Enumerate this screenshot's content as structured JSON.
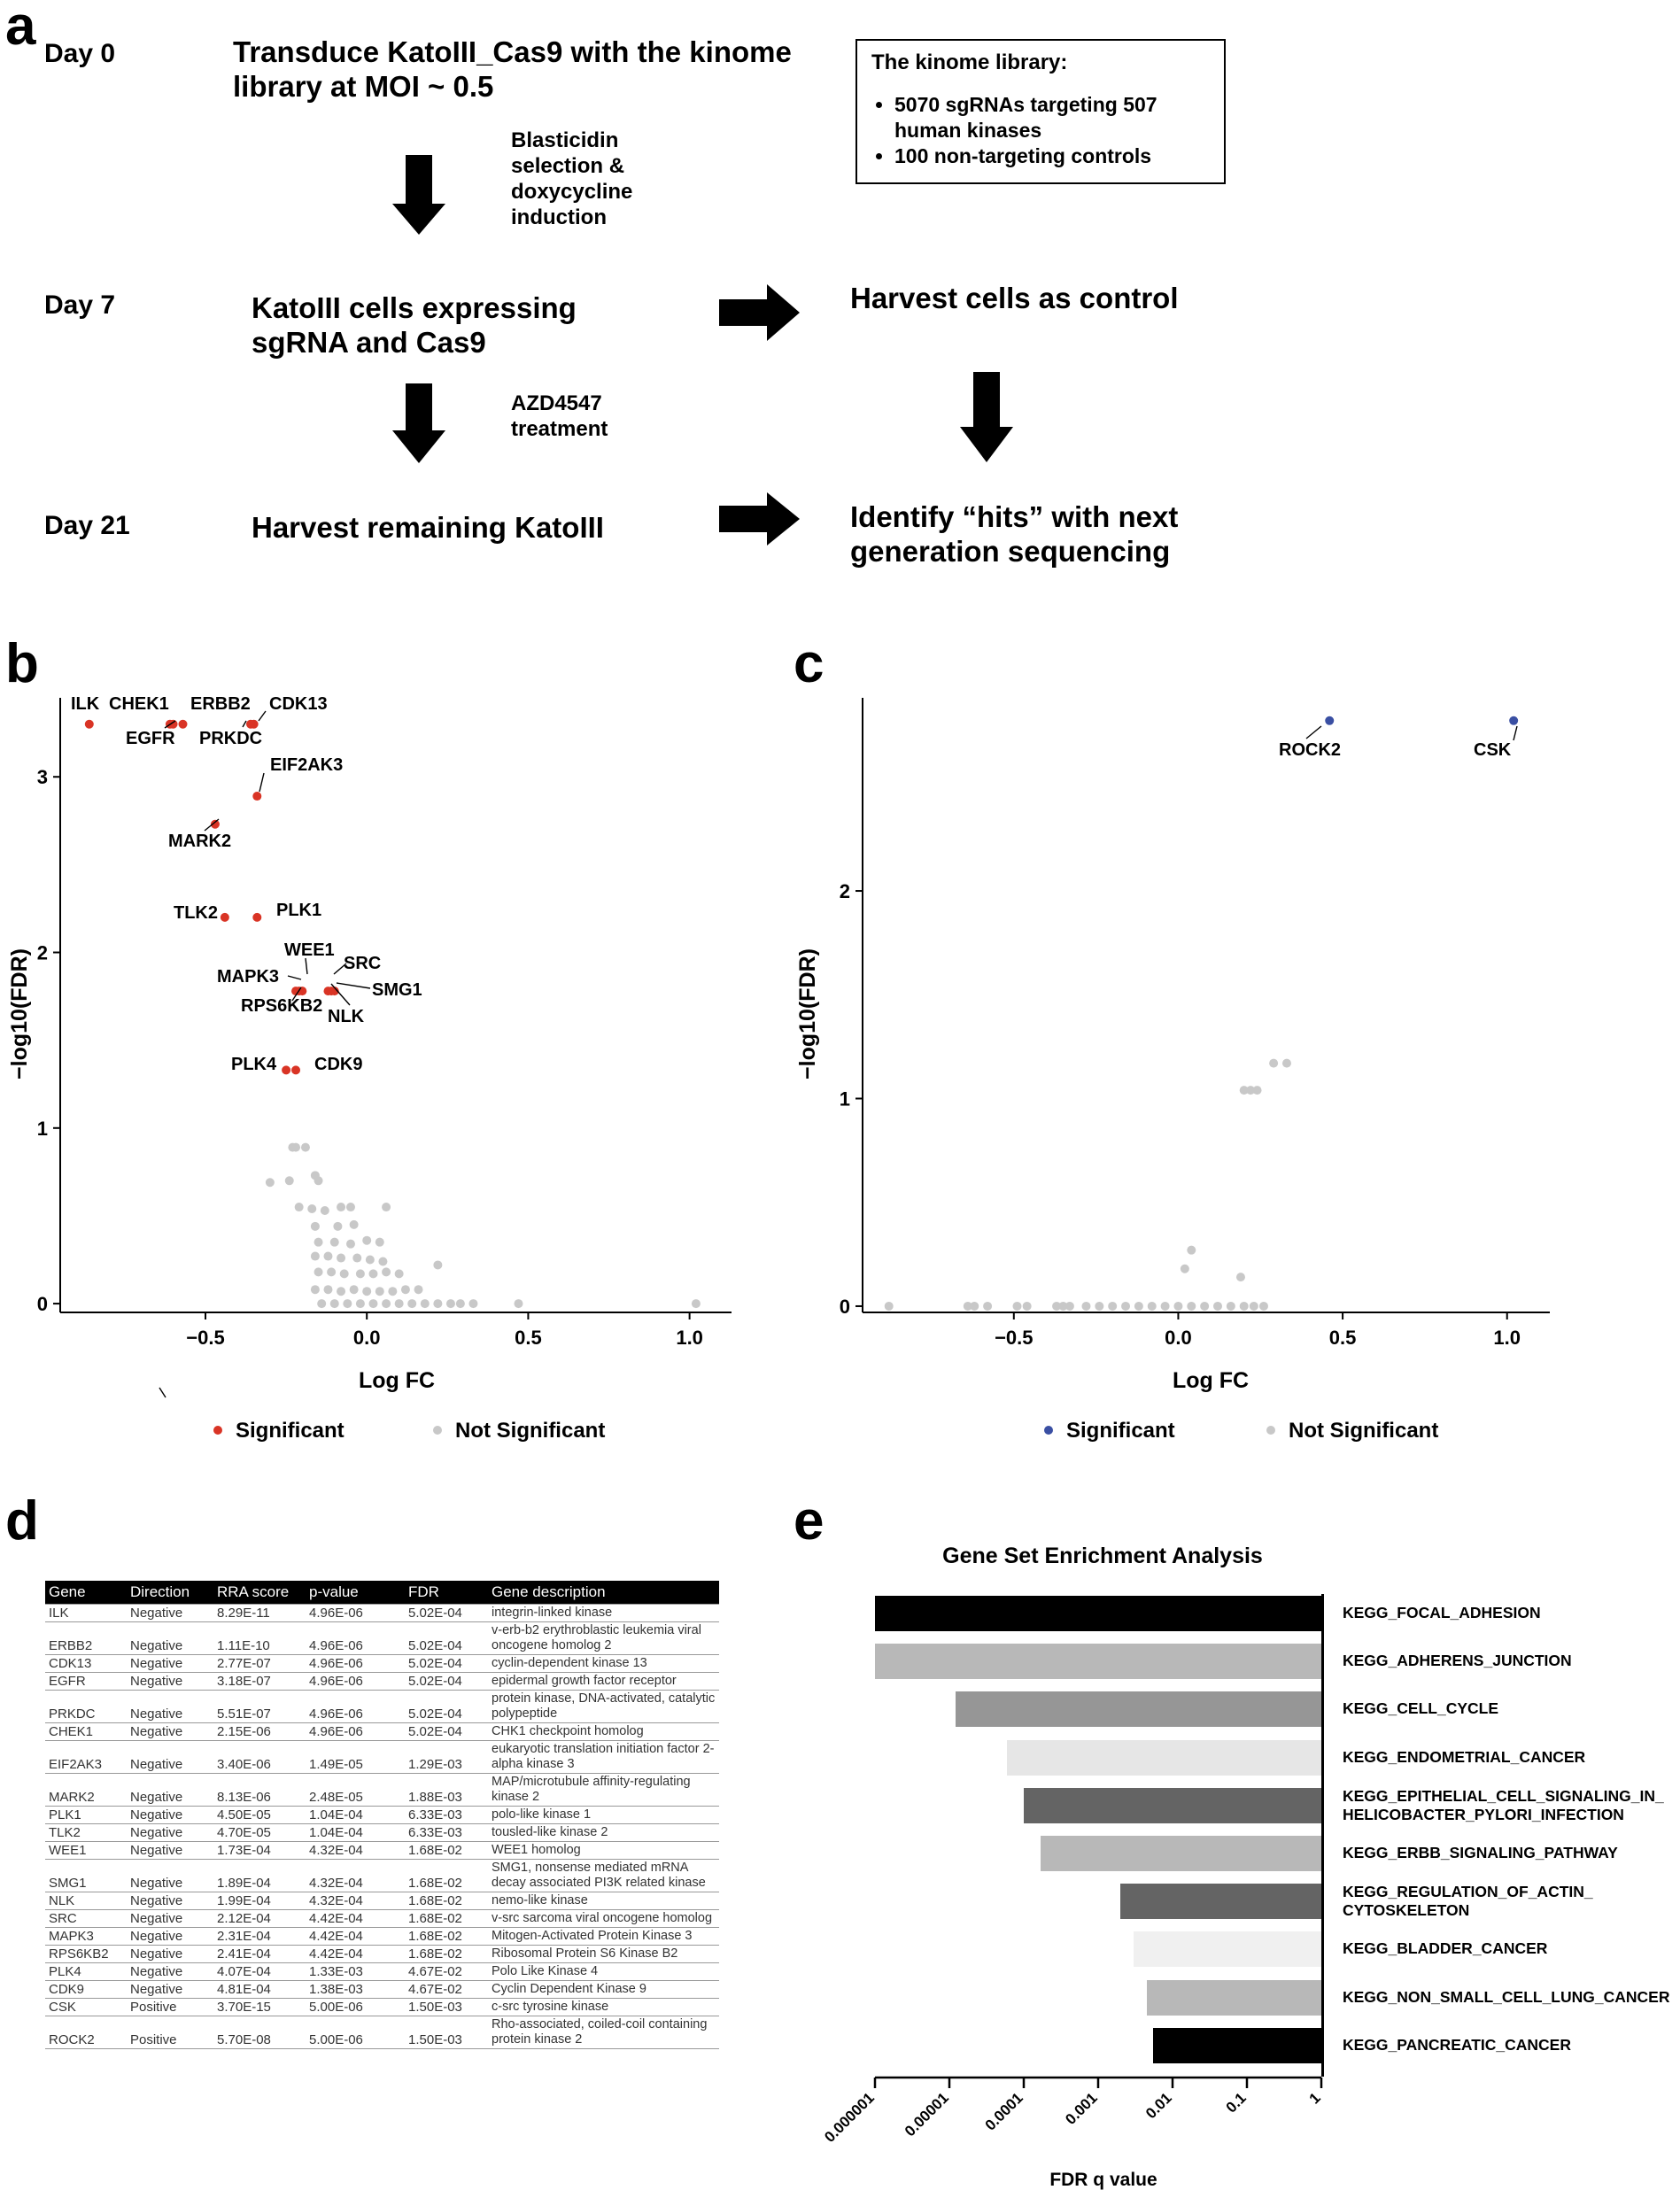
{
  "panel_a": {
    "letter": "a",
    "steps": [
      {
        "day": "Day 0",
        "text_lines": [
          "Transduce KatoIII_Cas9 with the kinome",
          "library at MOI ~ 0.5"
        ]
      },
      {
        "day": "Day 7",
        "text_lines": [
          "KatoIII cells expressing",
          "sgRNA and Cas9"
        ]
      },
      {
        "day": "Day 21",
        "text_lines": [
          "Harvest remaining KatoIII"
        ]
      }
    ],
    "notes": [
      [
        "Blasticidin",
        "selection &",
        "doxycycline",
        "induction"
      ],
      [
        "AZD4547",
        "treatment"
      ]
    ],
    "control_text": "Harvest cells as control",
    "identify_lines": [
      "Identify “hits” with next",
      "generation sequencing"
    ],
    "library_box": {
      "title": "The kinome library:",
      "items": [
        "5070 sgRNAs targeting 507 human kinases",
        "100 non-targeting controls"
      ]
    }
  },
  "panel_b": {
    "letter": "b",
    "xlabel": "Log FC",
    "ylabel": "−log10(FDR)",
    "legend": {
      "significant": "Significant",
      "not_significant": "Not Significant"
    }
  },
  "panel_c": {
    "letter": "c",
    "xlabel": "Log FC",
    "ylabel": "−log10(FDR)",
    "legend": {
      "significant": "Significant",
      "not_significant": "Not Significant"
    }
  },
  "panel_d": {
    "letter": "d",
    "columns": [
      "Gene",
      "Direction",
      "RRA score",
      "p-value",
      "FDR",
      "Gene description"
    ],
    "rows": [
      [
        "ILK",
        "Negative",
        "8.29E-11",
        "4.96E-06",
        "5.02E-04",
        "integrin-linked kinase"
      ],
      [
        "ERBB2",
        "Negative",
        "1.11E-10",
        "4.96E-06",
        "5.02E-04",
        "v-erb-b2 erythroblastic leukemia viral oncogene homolog 2"
      ],
      [
        "CDK13",
        "Negative",
        "2.77E-07",
        "4.96E-06",
        "5.02E-04",
        "cyclin-dependent kinase 13"
      ],
      [
        "EGFR",
        "Negative",
        "3.18E-07",
        "4.96E-06",
        "5.02E-04",
        "epidermal growth factor receptor"
      ],
      [
        "PRKDC",
        "Negative",
        "5.51E-07",
        "4.96E-06",
        "5.02E-04",
        "protein kinase, DNA-activated, catalytic polypeptide"
      ],
      [
        "CHEK1",
        "Negative",
        "2.15E-06",
        "4.96E-06",
        "5.02E-04",
        "CHK1 checkpoint homolog"
      ],
      [
        "EIF2AK3",
        "Negative",
        "3.40E-06",
        "1.49E-05",
        "1.29E-03",
        "eukaryotic translation initiation factor 2-alpha kinase 3"
      ],
      [
        "MARK2",
        "Negative",
        "8.13E-06",
        "2.48E-05",
        "1.88E-03",
        "MAP/microtubule affinity-regulating kinase 2"
      ],
      [
        "PLK1",
        "Negative",
        "4.50E-05",
        "1.04E-04",
        "6.33E-03",
        "polo-like kinase 1"
      ],
      [
        "TLK2",
        "Negative",
        "4.70E-05",
        "1.04E-04",
        "6.33E-03",
        "tousled-like kinase 2"
      ],
      [
        "WEE1",
        "Negative",
        "1.73E-04",
        "4.32E-04",
        "1.68E-02",
        "WEE1 homolog"
      ],
      [
        "SMG1",
        "Negative",
        "1.89E-04",
        "4.32E-04",
        "1.68E-02",
        "SMG1, nonsense mediated mRNA decay associated PI3K related kinase"
      ],
      [
        "NLK",
        "Negative",
        "1.99E-04",
        "4.32E-04",
        "1.68E-02",
        "nemo-like kinase"
      ],
      [
        "SRC",
        "Negative",
        "2.12E-04",
        "4.42E-04",
        "1.68E-02",
        "v-src sarcoma viral oncogene homolog"
      ],
      [
        "MAPK3",
        "Negative",
        "2.31E-04",
        "4.42E-04",
        "1.68E-02",
        "Mitogen-Activated Protein Kinase 3"
      ],
      [
        "RPS6KB2",
        "Negative",
        "2.41E-04",
        "4.42E-04",
        "1.68E-02",
        "Ribosomal Protein S6 Kinase B2"
      ],
      [
        "PLK4",
        "Negative",
        "4.07E-04",
        "1.33E-03",
        "4.67E-02",
        "Polo Like Kinase 4"
      ],
      [
        "CDK9",
        "Negative",
        "4.81E-04",
        "1.38E-03",
        "4.67E-02",
        "Cyclin Dependent Kinase 9"
      ],
      [
        "CSK",
        "Positive",
        "3.70E-15",
        "5.00E-06",
        "1.50E-03",
        "c-src tyrosine kinase"
      ],
      [
        "ROCK2",
        "Positive",
        "5.70E-08",
        "5.00E-06",
        "1.50E-03",
        "Rho-associated, coiled-coil containing protein kinase 2"
      ]
    ]
  },
  "panel_e": {
    "letter": "e"
  },
  "colors": {
    "significant_b": "#d93425",
    "significant_c": "#3a4fa3",
    "not_significant": "#c8c8c8"
  },
  "chart_data": [
    {
      "type": "scatter",
      "panel": "b",
      "xlabel": "Log FC",
      "ylabel": "−log10(FDR)",
      "xlim": [
        -0.95,
        1.13
      ],
      "ylim": [
        -0.05,
        3.45
      ],
      "xticks": [
        -0.5,
        0.0,
        0.5,
        1.0
      ],
      "xtick_labels": [
        "−0.5",
        "0.0",
        "0.5",
        "1.0"
      ],
      "yticks": [
        0,
        1,
        2,
        3
      ],
      "ytick_labels": [
        "0",
        "1",
        "2",
        "3"
      ],
      "series": [
        {
          "name": "Significant",
          "color": "#d93425",
          "points": [
            {
              "x": -0.86,
              "y": 3.3,
              "label": "ILK"
            },
            {
              "x": -0.61,
              "y": 3.3,
              "label": "CHEK1"
            },
            {
              "x": -0.6,
              "y": 3.3,
              "label": "EGFR"
            },
            {
              "x": -0.57,
              "y": 3.3,
              "label": "ERBB2"
            },
            {
              "x": -0.35,
              "y": 3.3,
              "label": "CDK13"
            },
            {
              "x": -0.36,
              "y": 3.3,
              "label": "PRKDC"
            },
            {
              "x": -0.34,
              "y": 2.89,
              "label": "EIF2AK3"
            },
            {
              "x": -0.47,
              "y": 2.73,
              "label": "MARK2"
            },
            {
              "x": -0.44,
              "y": 2.2,
              "label": "TLK2"
            },
            {
              "x": -0.34,
              "y": 2.2,
              "label": "PLK1"
            },
            {
              "x": -0.2,
              "y": 1.78,
              "label": "WEE1"
            },
            {
              "x": -0.11,
              "y": 1.78,
              "label": "SRC"
            },
            {
              "x": -0.1,
              "y": 1.78,
              "label": "SMG1"
            },
            {
              "x": -0.12,
              "y": 1.78,
              "label": "NLK"
            },
            {
              "x": -0.22,
              "y": 1.78,
              "label": "MAPK3"
            },
            {
              "x": -0.21,
              "y": 1.78,
              "label": "RPS6KB2"
            },
            {
              "x": -0.25,
              "y": 1.33,
              "label": "PLK4"
            },
            {
              "x": -0.22,
              "y": 1.33,
              "label": "CDK9"
            }
          ]
        },
        {
          "name": "Not Significant",
          "color": "#c8c8c8",
          "points": [
            {
              "x": -0.23,
              "y": 0.89
            },
            {
              "x": -0.19,
              "y": 0.89
            },
            {
              "x": -0.22,
              "y": 0.89
            },
            {
              "x": -0.3,
              "y": 0.69
            },
            {
              "x": -0.24,
              "y": 0.7
            },
            {
              "x": -0.16,
              "y": 0.73
            },
            {
              "x": -0.15,
              "y": 0.7
            },
            {
              "x": -0.21,
              "y": 0.55
            },
            {
              "x": -0.17,
              "y": 0.54
            },
            {
              "x": -0.13,
              "y": 0.53
            },
            {
              "x": -0.08,
              "y": 0.55
            },
            {
              "x": -0.05,
              "y": 0.55
            },
            {
              "x": 0.06,
              "y": 0.55
            },
            {
              "x": -0.16,
              "y": 0.44
            },
            {
              "x": -0.09,
              "y": 0.44
            },
            {
              "x": -0.04,
              "y": 0.45
            },
            {
              "x": -0.15,
              "y": 0.35
            },
            {
              "x": -0.1,
              "y": 0.35
            },
            {
              "x": -0.05,
              "y": 0.34
            },
            {
              "x": 0.0,
              "y": 0.36
            },
            {
              "x": 0.04,
              "y": 0.35
            },
            {
              "x": -0.16,
              "y": 0.27
            },
            {
              "x": -0.12,
              "y": 0.27
            },
            {
              "x": -0.08,
              "y": 0.26
            },
            {
              "x": -0.03,
              "y": 0.26
            },
            {
              "x": 0.01,
              "y": 0.25
            },
            {
              "x": 0.05,
              "y": 0.24
            },
            {
              "x": -0.15,
              "y": 0.18
            },
            {
              "x": -0.11,
              "y": 0.18
            },
            {
              "x": -0.07,
              "y": 0.17
            },
            {
              "x": -0.02,
              "y": 0.17
            },
            {
              "x": 0.02,
              "y": 0.17
            },
            {
              "x": 0.06,
              "y": 0.18
            },
            {
              "x": 0.1,
              "y": 0.17
            },
            {
              "x": 0.22,
              "y": 0.22
            },
            {
              "x": -0.16,
              "y": 0.08
            },
            {
              "x": -0.12,
              "y": 0.08
            },
            {
              "x": -0.08,
              "y": 0.07
            },
            {
              "x": -0.04,
              "y": 0.08
            },
            {
              "x": 0.0,
              "y": 0.07
            },
            {
              "x": 0.04,
              "y": 0.07
            },
            {
              "x": 0.08,
              "y": 0.07
            },
            {
              "x": 0.12,
              "y": 0.08
            },
            {
              "x": 0.16,
              "y": 0.08
            },
            {
              "x": -0.14,
              "y": 0.0
            },
            {
              "x": -0.1,
              "y": 0.0
            },
            {
              "x": -0.06,
              "y": 0.0
            },
            {
              "x": -0.02,
              "y": 0.0
            },
            {
              "x": 0.02,
              "y": 0.0
            },
            {
              "x": 0.06,
              "y": 0.0
            },
            {
              "x": 0.1,
              "y": 0.0
            },
            {
              "x": 0.14,
              "y": 0.0
            },
            {
              "x": 0.18,
              "y": 0.0
            },
            {
              "x": 0.22,
              "y": 0.0
            },
            {
              "x": 0.26,
              "y": 0.0
            },
            {
              "x": 0.29,
              "y": 0.0
            },
            {
              "x": 0.33,
              "y": 0.0
            },
            {
              "x": 0.47,
              "y": 0.0
            },
            {
              "x": 1.02,
              "y": 0.0
            }
          ]
        }
      ],
      "legend": [
        "Significant",
        "Not Significant"
      ]
    },
    {
      "type": "scatter",
      "panel": "c",
      "xlabel": "Log FC",
      "ylabel": "−log10(FDR)",
      "xlim": [
        -0.96,
        1.13
      ],
      "ylim": [
        -0.03,
        2.93
      ],
      "xticks": [
        -0.5,
        0.0,
        0.5,
        1.0
      ],
      "xtick_labels": [
        "−0.5",
        "0.0",
        "0.5",
        "1.0"
      ],
      "yticks": [
        0,
        1,
        2
      ],
      "ytick_labels": [
        "0",
        "1",
        "2"
      ],
      "series": [
        {
          "name": "Significant",
          "color": "#3a4fa3",
          "points": [
            {
              "x": 0.46,
              "y": 2.82,
              "label": "ROCK2"
            },
            {
              "x": 1.02,
              "y": 2.82,
              "label": "CSK"
            }
          ]
        },
        {
          "name": "Not Significant",
          "color": "#c8c8c8",
          "points": [
            {
              "x": 0.29,
              "y": 1.17
            },
            {
              "x": 0.33,
              "y": 1.17
            },
            {
              "x": 0.2,
              "y": 1.04
            },
            {
              "x": 0.22,
              "y": 1.04
            },
            {
              "x": 0.24,
              "y": 1.04
            },
            {
              "x": 0.04,
              "y": 0.27
            },
            {
              "x": 0.02,
              "y": 0.18
            },
            {
              "x": 0.19,
              "y": 0.14
            },
            {
              "x": -0.88,
              "y": 0.0
            },
            {
              "x": -0.64,
              "y": 0.0
            },
            {
              "x": -0.62,
              "y": 0.0
            },
            {
              "x": -0.58,
              "y": 0.0
            },
            {
              "x": -0.49,
              "y": 0.0
            },
            {
              "x": -0.46,
              "y": 0.0
            },
            {
              "x": -0.37,
              "y": 0.0
            },
            {
              "x": -0.35,
              "y": 0.0
            },
            {
              "x": -0.33,
              "y": 0.0
            },
            {
              "x": -0.28,
              "y": 0.0
            },
            {
              "x": -0.24,
              "y": 0.0
            },
            {
              "x": -0.2,
              "y": 0.0
            },
            {
              "x": -0.16,
              "y": 0.0
            },
            {
              "x": -0.12,
              "y": 0.0
            },
            {
              "x": -0.08,
              "y": 0.0
            },
            {
              "x": -0.04,
              "y": 0.0
            },
            {
              "x": 0.0,
              "y": 0.0
            },
            {
              "x": 0.04,
              "y": 0.0
            },
            {
              "x": 0.08,
              "y": 0.0
            },
            {
              "x": 0.12,
              "y": 0.0
            },
            {
              "x": 0.16,
              "y": 0.0
            },
            {
              "x": 0.2,
              "y": 0.0
            },
            {
              "x": 0.23,
              "y": 0.0
            },
            {
              "x": 0.26,
              "y": 0.0
            }
          ]
        }
      ],
      "legend": [
        "Significant",
        "Not Significant"
      ]
    },
    {
      "type": "bar",
      "panel": "e",
      "orientation": "horizontal",
      "title": "Gene Set Enrichment Analysis",
      "xlabel": "FDR q value",
      "xscale": "log",
      "xlim": [
        1e-06,
        1
      ],
      "xticks": [
        1e-06,
        1e-05,
        0.0001,
        0.001,
        0.01,
        0.1,
        1
      ],
      "xtick_labels": [
        "0.000001",
        "0.00001",
        "0.0001",
        "0.001",
        "0.01",
        "0.1",
        "1"
      ],
      "categories": [
        "KEGG_FOCAL_ADHESION",
        "KEGG_ADHERENS_JUNCTION",
        "KEGG_CELL_CYCLE",
        "KEGG_ENDOMETRIAL_CANCER",
        "KEGG_EPITHELIAL_CELL_SIGNALING_IN_ HELICOBACTER_PYLORI_INFECTION",
        "KEGG_ERBB_SIGNALING_PATHWAY",
        "KEGG_REGULATION_OF_ACTIN_ CYTOSKELETON",
        "KEGG_BLADDER_CANCER",
        "KEGG_NON_SMALL_CELL_LUNG_CANCER",
        "KEGG_PANCREATIC_CANCER"
      ],
      "values": [
        1e-06,
        1e-06,
        1.2e-05,
        6e-05,
        0.0001,
        0.00017,
        0.002,
        0.003,
        0.0045,
        0.0055
      ],
      "bar_colors": [
        "#000000",
        "#b8b8b8",
        "#969696",
        "#e6e6e6",
        "#646464",
        "#b8b8b8",
        "#646464",
        "#f0f0f0",
        "#b8b8b8",
        "#000000"
      ]
    }
  ]
}
